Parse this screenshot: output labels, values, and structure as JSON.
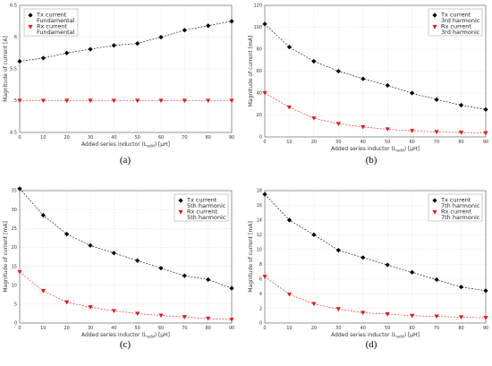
{
  "figure": {
    "panel_labels": [
      "(a)",
      "(b)",
      "(c)",
      "(d)"
    ]
  },
  "colors": {
    "tx": "#000000",
    "rx": "#e41a1c",
    "grid": "#dcdcdc",
    "frame": "#555555"
  },
  "chart_data": [
    {
      "type": "scatter",
      "panel": "(a)",
      "xlabel": "Added series inductor (L_add) [μH]",
      "ylabel": "Magnitude of current [A]",
      "xlim": [
        0,
        90
      ],
      "ylim": [
        4.5,
        6.5
      ],
      "xticks": [
        "0",
        "10",
        "20",
        "30",
        "40",
        "50",
        "60",
        "70",
        "80",
        "90"
      ],
      "yticks": [
        "4.5",
        "5",
        "5.5",
        "6",
        "6.5"
      ],
      "grid": true,
      "legend_position": "top-left",
      "x": [
        0,
        10,
        20,
        30,
        40,
        50,
        60,
        70,
        80,
        90
      ],
      "series": [
        {
          "name": "Tx current",
          "name_line2": "Fundamental",
          "marker": "diamond",
          "color": "#000000",
          "values": [
            5.62,
            5.67,
            5.75,
            5.81,
            5.87,
            5.9,
            6.0,
            6.11,
            6.18,
            6.25
          ]
        },
        {
          "name": "Rx current",
          "name_line2": "Fundamental",
          "marker": "triangle-down",
          "color": "#e41a1c",
          "values": [
            5.0,
            5.0,
            5.0,
            5.0,
            5.0,
            5.0,
            5.0,
            5.0,
            5.0,
            5.0
          ]
        }
      ]
    },
    {
      "type": "scatter",
      "panel": "(b)",
      "xlabel": "Added series inductor (L_add) [μH]",
      "ylabel": "Magnitude of current [mA]",
      "xlim": [
        0,
        90
      ],
      "ylim": [
        0,
        120
      ],
      "xticks": [
        "0",
        "10",
        "20",
        "30",
        "40",
        "50",
        "60",
        "70",
        "80",
        "90"
      ],
      "yticks": [
        "0",
        "20",
        "40",
        "60",
        "80",
        "100",
        "120"
      ],
      "grid": true,
      "legend_position": "top-right",
      "x": [
        0,
        10,
        20,
        30,
        40,
        50,
        60,
        70,
        80,
        90
      ],
      "series": [
        {
          "name": "Tx current",
          "name_line2": "3rd harmonic",
          "marker": "diamond",
          "color": "#000000",
          "values": [
            103,
            82,
            69,
            60,
            53,
            47,
            40,
            34,
            29,
            25
          ]
        },
        {
          "name": "Rx current",
          "name_line2": "3rd harmonic",
          "marker": "triangle-down",
          "color": "#e41a1c",
          "values": [
            40,
            27,
            17,
            12,
            9,
            7,
            5.5,
            4.5,
            4,
            3.5
          ]
        }
      ]
    },
    {
      "type": "scatter",
      "panel": "(c)",
      "xlabel": "Added series inductor (L_add) [μH]",
      "ylabel": "Magnitude of current [mA]",
      "xlim": [
        0,
        90
      ],
      "ylim": [
        0,
        35
      ],
      "xticks": [
        "0",
        "10",
        "20",
        "30",
        "40",
        "50",
        "60",
        "70",
        "80",
        "90"
      ],
      "yticks": [
        "0",
        "5",
        "10",
        "15",
        "20",
        "25",
        "30",
        "35"
      ],
      "grid": true,
      "legend_position": "top-right",
      "x": [
        0,
        10,
        20,
        30,
        40,
        50,
        60,
        70,
        80,
        90
      ],
      "series": [
        {
          "name": "Tx current",
          "name_line2": "5th harmonic",
          "marker": "diamond",
          "color": "#000000",
          "values": [
            35.5,
            28.5,
            23.5,
            20.5,
            18.5,
            16.5,
            14.5,
            12.5,
            11.5,
            9.2
          ]
        },
        {
          "name": "Rx current",
          "name_line2": "5th harmonic",
          "marker": "triangle-down",
          "color": "#e41a1c",
          "values": [
            13.5,
            8.5,
            5.5,
            4.2,
            3.2,
            2.5,
            2.0,
            1.6,
            1.2,
            0.9
          ]
        }
      ]
    },
    {
      "type": "scatter",
      "panel": "(d)",
      "xlabel": "Added series inductor (L_add) [μH]",
      "ylabel": "Magnitude of current [mA]",
      "xlim": [
        0,
        90
      ],
      "ylim": [
        0,
        18
      ],
      "xticks": [
        "0",
        "10",
        "20",
        "30",
        "40",
        "50",
        "60",
        "70",
        "80",
        "90"
      ],
      "yticks": [
        "0",
        "2",
        "4",
        "6",
        "8",
        "10",
        "12",
        "14",
        "16",
        "18"
      ],
      "grid": true,
      "legend_position": "top-right",
      "x": [
        0,
        10,
        20,
        30,
        40,
        50,
        60,
        70,
        80,
        90
      ],
      "series": [
        {
          "name": "Tx current",
          "name_line2": "7th harmonic",
          "marker": "diamond",
          "color": "#000000",
          "values": [
            17.5,
            14.0,
            12.0,
            9.9,
            8.9,
            7.9,
            6.9,
            5.9,
            4.9,
            4.4
          ]
        },
        {
          "name": "Rx current",
          "name_line2": "7th harmonic",
          "marker": "triangle-down",
          "color": "#e41a1c",
          "values": [
            6.3,
            3.9,
            2.6,
            1.9,
            1.4,
            1.2,
            1.0,
            0.9,
            0.8,
            0.7
          ]
        }
      ]
    }
  ]
}
